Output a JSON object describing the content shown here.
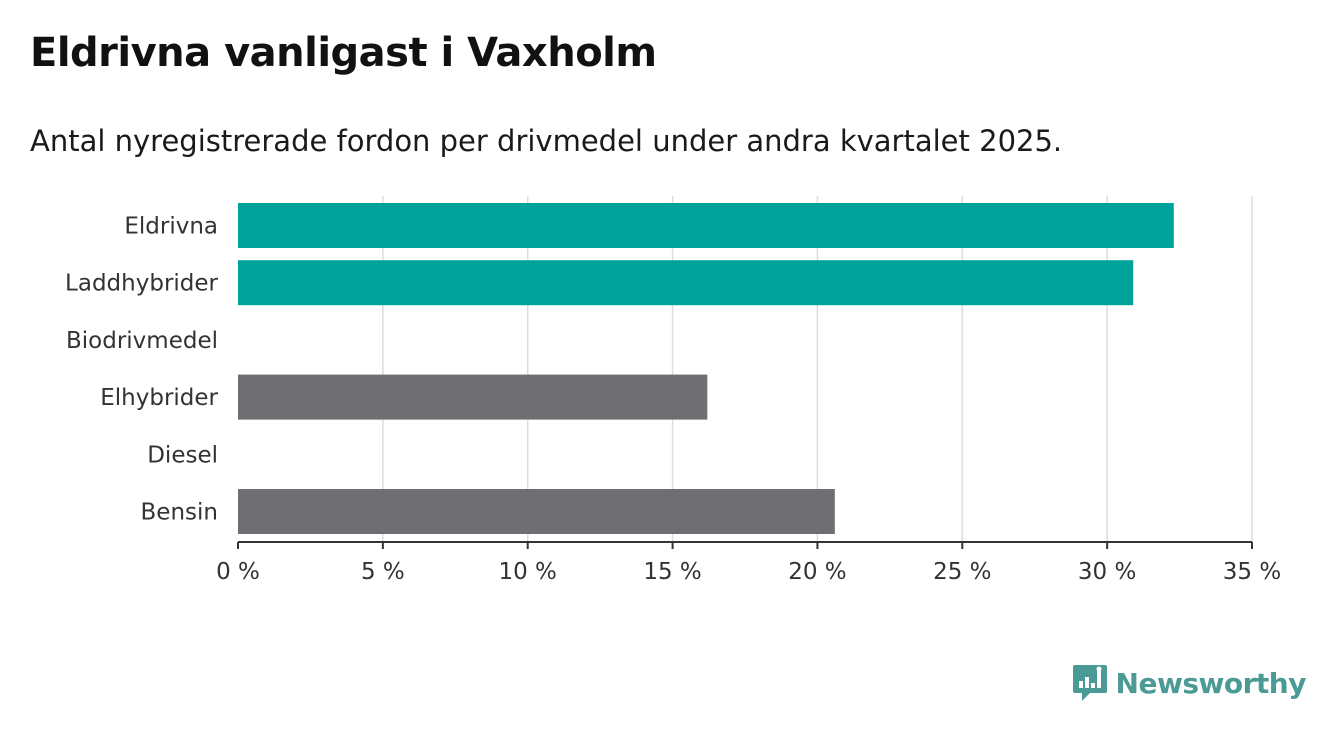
{
  "header": {
    "title": "Eldrivna vanligast i Vaxholm",
    "subtitle": "Antal nyregistrerade fordon per drivmedel under andra kvartalet 2025."
  },
  "brand": {
    "name": "Newsworthy",
    "color": "#4a9a95"
  },
  "colors": {
    "highlight": "#00a399",
    "default": "#6e6e73",
    "grid": "#dddddd",
    "axis": "#333333"
  },
  "chart_data": {
    "type": "bar",
    "orientation": "horizontal",
    "title": "Eldrivna vanligast i Vaxholm",
    "subtitle": "Antal nyregistrerade fordon per drivmedel under andra kvartalet 2025.",
    "categories": [
      "Eldrivna",
      "Laddhybrider",
      "Biodrivmedel",
      "Elhybrider",
      "Diesel",
      "Bensin"
    ],
    "values": [
      32.3,
      30.9,
      0,
      16.2,
      0,
      20.6
    ],
    "bar_colors": [
      "#00a399",
      "#00a399",
      "#6e6e73",
      "#6e6e73",
      "#6e6e73",
      "#6e6e73"
    ],
    "xlim": [
      0,
      35
    ],
    "xticks": [
      0,
      5,
      10,
      15,
      20,
      25,
      30,
      35
    ],
    "tick_labels": [
      "0 %",
      "5 %",
      "10 %",
      "15 %",
      "20 %",
      "25 %",
      "30 %",
      "35 %"
    ],
    "unit": "%",
    "grid": true,
    "legend": "none"
  }
}
